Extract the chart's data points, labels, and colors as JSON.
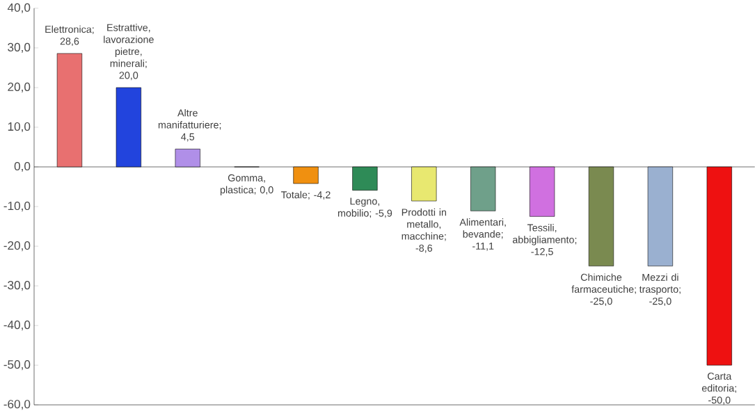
{
  "chart_data": {
    "type": "bar",
    "categories": [
      null,
      null,
      null,
      null,
      null,
      null,
      null,
      null,
      null,
      null,
      null,
      null
    ],
    "values": [
      28.6,
      20.0,
      4.5,
      0.0,
      -4.2,
      -5.9,
      -8.6,
      -11.1,
      -12.5,
      -25.0,
      -25.0,
      -50.0
    ],
    "value_labels": [
      "Elettronica; 28,6",
      "Estrattive, lavorazione pietre, minerali; 20,0",
      "Altre manifatturiere; 4,5",
      "Gomma, plastica; 0,0",
      "Totale; -4,2",
      "Legno, mobilio; -5,9",
      "Prodotti in metallo, macchine; -8,6",
      "Alimentari, bevande; -11,1",
      "Tessili, abbigliamento; -12,5",
      "Chimiche farmaceutiche; -25,0",
      "Mezzi di trasporto; -25,0",
      "Carta editoria; -50,0"
    ],
    "colors": [
      "#e87070",
      "#2244dd",
      "#b08fe8",
      "#a8d8a0",
      "#f09010",
      "#2e8b57",
      "#e8e870",
      "#6fa08a",
      "#d070e0",
      "#7a8a50",
      "#9ab0d0",
      "#ee1111"
    ],
    "ylim": [
      -60,
      40
    ],
    "yticks": [
      {
        "value": -60,
        "label": "-60,0"
      },
      {
        "value": -50,
        "label": "-50,0"
      },
      {
        "value": -40,
        "label": "-40,0"
      },
      {
        "value": -30,
        "label": "-30,0"
      },
      {
        "value": -20,
        "label": "-20,0"
      },
      {
        "value": -10,
        "label": "-10,0"
      },
      {
        "value": 0,
        "label": "0,0"
      },
      {
        "value": 10,
        "label": "10,0"
      },
      {
        "value": 20,
        "label": "20,0"
      },
      {
        "value": 30,
        "label": "30,0"
      },
      {
        "value": 40,
        "label": "40,0"
      }
    ],
    "tick_labels": "y",
    "grid": false,
    "ref_lines": [
      {
        "axis": "y",
        "value": 0
      }
    ]
  }
}
